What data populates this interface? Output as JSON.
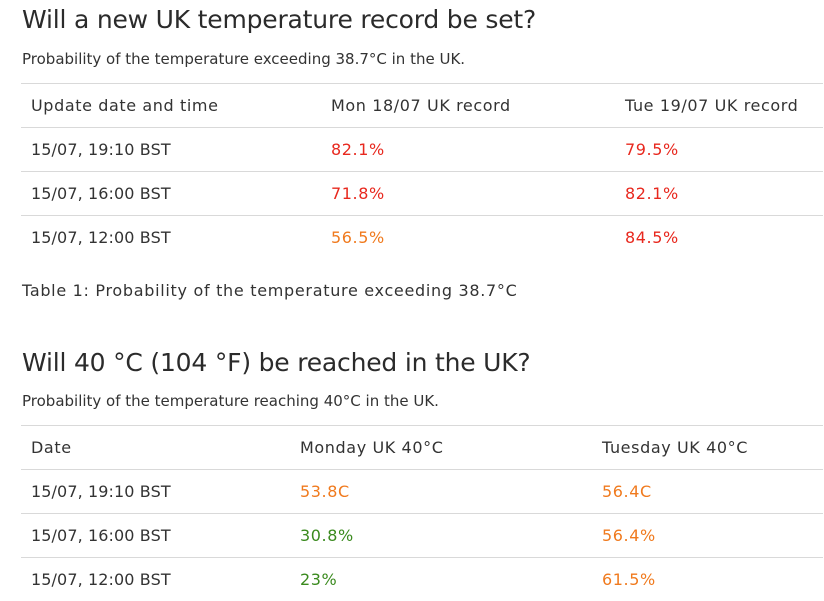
{
  "section1": {
    "title": "Will a new UK temperature record be set?",
    "subtitle": "Probability of the temperature exceeding 38.7°C in the UK.",
    "headers": [
      "Update date and time",
      "Mon 18/07 UK record",
      "Tue 19/07 UK record"
    ],
    "rows": [
      {
        "date": "15/07, 19:10 BST",
        "mon": "82.1%",
        "tue": "79.5%",
        "mon_color": "#e8281e",
        "tue_color": "#e8281e"
      },
      {
        "date": "15/07, 16:00 BST",
        "mon": "71.8%",
        "tue": "82.1%",
        "mon_color": "#e8281e",
        "tue_color": "#e8281e"
      },
      {
        "date": "15/07, 12:00 BST",
        "mon": "56.5%",
        "tue": "84.5%",
        "mon_color": "#f07a1e",
        "tue_color": "#e8281e"
      }
    ],
    "caption": "Table 1: Probability of the temperature exceeding 38.7°C"
  },
  "section2": {
    "title": "Will 40 °C (104 °F) be reached in the UK?",
    "subtitle": "Probability of the temperature reaching 40°C in the UK.",
    "headers": [
      "Date",
      "Monday UK 40°C",
      "Tuesday UK 40°C"
    ],
    "rows": [
      {
        "date": "15/07, 19:10 BST",
        "mon": "53.8C",
        "tue": "56.4C",
        "mon_color": "#f07a1e",
        "tue_color": "#f07a1e"
      },
      {
        "date": "15/07, 16:00 BST",
        "mon": "30.8%",
        "tue": "56.4%",
        "mon_color": "#3a8a1e",
        "tue_color": "#f07a1e"
      },
      {
        "date": "15/07, 12:00 BST",
        "mon": "23%",
        "tue": "61.5%",
        "mon_color": "#3a8a1e",
        "tue_color": "#f07a1e"
      }
    ]
  }
}
